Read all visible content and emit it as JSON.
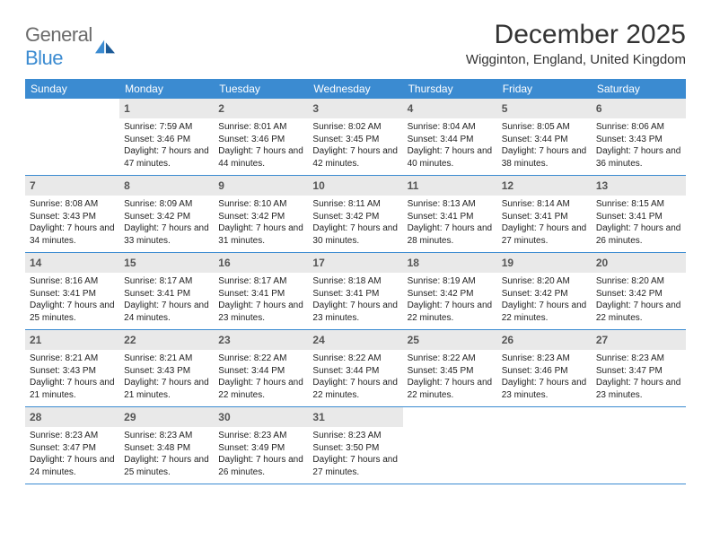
{
  "logo": {
    "word1": "General",
    "word2": "Blue"
  },
  "title": "December 2025",
  "location": "Wigginton, England, United Kingdom",
  "brand_color": "#3b8bd1",
  "daynum_bg": "#e9e9e9",
  "text_color": "#222222",
  "days_of_week": [
    "Sunday",
    "Monday",
    "Tuesday",
    "Wednesday",
    "Thursday",
    "Friday",
    "Saturday"
  ],
  "weeks": [
    [
      null,
      {
        "n": "1",
        "sr": "7:59 AM",
        "ss": "3:46 PM",
        "dl": "7 hours and 47 minutes."
      },
      {
        "n": "2",
        "sr": "8:01 AM",
        "ss": "3:46 PM",
        "dl": "7 hours and 44 minutes."
      },
      {
        "n": "3",
        "sr": "8:02 AM",
        "ss": "3:45 PM",
        "dl": "7 hours and 42 minutes."
      },
      {
        "n": "4",
        "sr": "8:04 AM",
        "ss": "3:44 PM",
        "dl": "7 hours and 40 minutes."
      },
      {
        "n": "5",
        "sr": "8:05 AM",
        "ss": "3:44 PM",
        "dl": "7 hours and 38 minutes."
      },
      {
        "n": "6",
        "sr": "8:06 AM",
        "ss": "3:43 PM",
        "dl": "7 hours and 36 minutes."
      }
    ],
    [
      {
        "n": "7",
        "sr": "8:08 AM",
        "ss": "3:43 PM",
        "dl": "7 hours and 34 minutes."
      },
      {
        "n": "8",
        "sr": "8:09 AM",
        "ss": "3:42 PM",
        "dl": "7 hours and 33 minutes."
      },
      {
        "n": "9",
        "sr": "8:10 AM",
        "ss": "3:42 PM",
        "dl": "7 hours and 31 minutes."
      },
      {
        "n": "10",
        "sr": "8:11 AM",
        "ss": "3:42 PM",
        "dl": "7 hours and 30 minutes."
      },
      {
        "n": "11",
        "sr": "8:13 AM",
        "ss": "3:41 PM",
        "dl": "7 hours and 28 minutes."
      },
      {
        "n": "12",
        "sr": "8:14 AM",
        "ss": "3:41 PM",
        "dl": "7 hours and 27 minutes."
      },
      {
        "n": "13",
        "sr": "8:15 AM",
        "ss": "3:41 PM",
        "dl": "7 hours and 26 minutes."
      }
    ],
    [
      {
        "n": "14",
        "sr": "8:16 AM",
        "ss": "3:41 PM",
        "dl": "7 hours and 25 minutes."
      },
      {
        "n": "15",
        "sr": "8:17 AM",
        "ss": "3:41 PM",
        "dl": "7 hours and 24 minutes."
      },
      {
        "n": "16",
        "sr": "8:17 AM",
        "ss": "3:41 PM",
        "dl": "7 hours and 23 minutes."
      },
      {
        "n": "17",
        "sr": "8:18 AM",
        "ss": "3:41 PM",
        "dl": "7 hours and 23 minutes."
      },
      {
        "n": "18",
        "sr": "8:19 AM",
        "ss": "3:42 PM",
        "dl": "7 hours and 22 minutes."
      },
      {
        "n": "19",
        "sr": "8:20 AM",
        "ss": "3:42 PM",
        "dl": "7 hours and 22 minutes."
      },
      {
        "n": "20",
        "sr": "8:20 AM",
        "ss": "3:42 PM",
        "dl": "7 hours and 22 minutes."
      }
    ],
    [
      {
        "n": "21",
        "sr": "8:21 AM",
        "ss": "3:43 PM",
        "dl": "7 hours and 21 minutes."
      },
      {
        "n": "22",
        "sr": "8:21 AM",
        "ss": "3:43 PM",
        "dl": "7 hours and 21 minutes."
      },
      {
        "n": "23",
        "sr": "8:22 AM",
        "ss": "3:44 PM",
        "dl": "7 hours and 22 minutes."
      },
      {
        "n": "24",
        "sr": "8:22 AM",
        "ss": "3:44 PM",
        "dl": "7 hours and 22 minutes."
      },
      {
        "n": "25",
        "sr": "8:22 AM",
        "ss": "3:45 PM",
        "dl": "7 hours and 22 minutes."
      },
      {
        "n": "26",
        "sr": "8:23 AM",
        "ss": "3:46 PM",
        "dl": "7 hours and 23 minutes."
      },
      {
        "n": "27",
        "sr": "8:23 AM",
        "ss": "3:47 PM",
        "dl": "7 hours and 23 minutes."
      }
    ],
    [
      {
        "n": "28",
        "sr": "8:23 AM",
        "ss": "3:47 PM",
        "dl": "7 hours and 24 minutes."
      },
      {
        "n": "29",
        "sr": "8:23 AM",
        "ss": "3:48 PM",
        "dl": "7 hours and 25 minutes."
      },
      {
        "n": "30",
        "sr": "8:23 AM",
        "ss": "3:49 PM",
        "dl": "7 hours and 26 minutes."
      },
      {
        "n": "31",
        "sr": "8:23 AM",
        "ss": "3:50 PM",
        "dl": "7 hours and 27 minutes."
      },
      null,
      null,
      null
    ]
  ],
  "labels": {
    "sunrise": "Sunrise:",
    "sunset": "Sunset:",
    "daylight": "Daylight:"
  }
}
